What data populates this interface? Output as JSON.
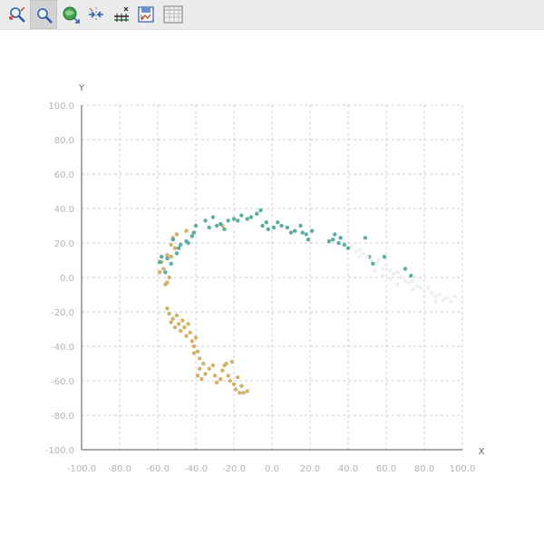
{
  "toolbar": {
    "tools": [
      {
        "icon": "zoom-out-icon",
        "selected": false
      },
      {
        "icon": "zoom-in-icon",
        "selected": true
      },
      {
        "icon": "pan-globe-icon",
        "selected": false
      },
      {
        "icon": "fit-to-data-icon",
        "selected": false
      },
      {
        "icon": "axis-scale-icon",
        "selected": false
      },
      {
        "icon": "save-image-icon",
        "selected": false
      },
      {
        "icon": "data-table-icon",
        "selected": false
      }
    ]
  },
  "chart_data": {
    "type": "scatter",
    "xlabel": "X",
    "ylabel": "Y",
    "xlim": [
      -100,
      100
    ],
    "ylim": [
      -100,
      100
    ],
    "grid": true,
    "x_ticks": [
      "-100.0",
      "-80.0",
      "-60.0",
      "-40.0",
      "-20.0",
      "0.0",
      "20.0",
      "40.0",
      "60.0",
      "80.0",
      "100.0"
    ],
    "y_ticks": [
      "100.0",
      "80.0",
      "60.0",
      "40.0",
      "20.0",
      "0.0",
      "-20.0",
      "-40.0",
      "-60.0",
      "-80.0",
      "-100.0"
    ],
    "series": [
      {
        "color": "#d4b16a",
        "points": [
          [
            -59,
            3
          ],
          [
            -58,
            9
          ],
          [
            -56,
            -4
          ],
          [
            -55,
            13
          ],
          [
            -53,
            19
          ],
          [
            -52,
            23
          ],
          [
            -50,
            25
          ],
          [
            -45,
            27
          ],
          [
            -42,
            24
          ],
          [
            -26,
            30
          ],
          [
            -54,
            0
          ],
          [
            -55,
            -3
          ],
          [
            -57,
            5
          ],
          [
            -53,
            12
          ],
          [
            -51,
            17
          ],
          [
            -55,
            -18
          ],
          [
            -54,
            -21
          ],
          [
            -52,
            -24
          ],
          [
            -53,
            -26
          ],
          [
            -50,
            -22
          ],
          [
            -51,
            -29
          ],
          [
            -49,
            -27
          ],
          [
            -48,
            -31
          ],
          [
            -47,
            -25
          ],
          [
            -46,
            -29
          ],
          [
            -45,
            -34
          ],
          [
            -44,
            -27
          ],
          [
            -43,
            -32
          ],
          [
            -42,
            -37
          ],
          [
            -41,
            -40
          ],
          [
            -40,
            -35
          ],
          [
            -41,
            -44
          ],
          [
            -39,
            -43
          ],
          [
            -38,
            -47
          ],
          [
            -36,
            -50
          ],
          [
            -38,
            -53
          ],
          [
            -35,
            -56
          ],
          [
            -33,
            -53
          ],
          [
            -31,
            -51
          ],
          [
            -30,
            -57
          ],
          [
            -29,
            -61
          ],
          [
            -27,
            -59
          ],
          [
            -26,
            -54
          ],
          [
            -25,
            -51
          ],
          [
            -23,
            -57
          ],
          [
            -22,
            -60
          ],
          [
            -21,
            -49
          ],
          [
            -20,
            -62
          ],
          [
            -19,
            -65
          ],
          [
            -18,
            -58
          ],
          [
            -17,
            -67
          ],
          [
            -16,
            -63
          ],
          [
            -15,
            -67
          ],
          [
            -13,
            -66
          ],
          [
            -39,
            -57
          ],
          [
            -37,
            -59
          ],
          [
            -24,
            -50
          ]
        ]
      },
      {
        "color": "#5aada0",
        "points": [
          [
            -59,
            9
          ],
          [
            -58,
            12
          ],
          [
            -56,
            3
          ],
          [
            -53,
            8
          ],
          [
            -49,
            17
          ],
          [
            -48,
            19
          ],
          [
            -45,
            21
          ],
          [
            -42,
            24
          ],
          [
            -41,
            26
          ],
          [
            -40,
            30
          ],
          [
            -35,
            33
          ],
          [
            -33,
            29
          ],
          [
            -31,
            35
          ],
          [
            -29,
            30
          ],
          [
            -27,
            31
          ],
          [
            -25,
            28
          ],
          [
            -23,
            33
          ],
          [
            -20,
            34
          ],
          [
            -18,
            33
          ],
          [
            -16,
            36
          ],
          [
            -13,
            34
          ],
          [
            -11,
            35
          ],
          [
            -8,
            37
          ],
          [
            -6,
            39
          ],
          [
            -5,
            30
          ],
          [
            -3,
            32
          ],
          [
            -2,
            28
          ],
          [
            1,
            29
          ],
          [
            3,
            32
          ],
          [
            5,
            30
          ],
          [
            8,
            29
          ],
          [
            10,
            26
          ],
          [
            12,
            27
          ],
          [
            15,
            30
          ],
          [
            16,
            26
          ],
          [
            18,
            25
          ],
          [
            19,
            22
          ],
          [
            21,
            27
          ],
          [
            30,
            21
          ],
          [
            32,
            22
          ],
          [
            33,
            25
          ],
          [
            35,
            20
          ],
          [
            36,
            23
          ],
          [
            38,
            19
          ],
          [
            40,
            17
          ],
          [
            49,
            23
          ],
          [
            51,
            12
          ],
          [
            53,
            8
          ],
          [
            59,
            12
          ],
          [
            70,
            5
          ],
          [
            73,
            1
          ],
          [
            -52,
            22
          ],
          [
            -55,
            11
          ],
          [
            -50,
            14
          ],
          [
            -44,
            20
          ]
        ]
      },
      {
        "color": "#eeeeee",
        "points": [
          [
            42,
            18
          ],
          [
            44,
            15
          ],
          [
            46,
            16
          ],
          [
            48,
            14
          ],
          [
            50,
            12
          ],
          [
            52,
            10
          ],
          [
            55,
            8
          ],
          [
            56,
            10
          ],
          [
            58,
            5
          ],
          [
            60,
            7
          ],
          [
            62,
            4
          ],
          [
            64,
            2
          ],
          [
            66,
            3
          ],
          [
            68,
            0
          ],
          [
            70,
            -2
          ],
          [
            72,
            -3
          ],
          [
            74,
            -2
          ],
          [
            76,
            -5
          ],
          [
            78,
            -6
          ],
          [
            80,
            -8
          ],
          [
            82,
            -6
          ],
          [
            84,
            -9
          ],
          [
            86,
            -11
          ],
          [
            88,
            -10
          ],
          [
            90,
            -13
          ],
          [
            92,
            -12
          ],
          [
            94,
            -14
          ],
          [
            96,
            -11
          ],
          [
            66,
            -4
          ],
          [
            62,
            -1
          ],
          [
            58,
            1
          ],
          [
            54,
            4
          ],
          [
            86,
            -14
          ],
          [
            80,
            -11
          ],
          [
            74,
            -7
          ],
          [
            46,
            12
          ]
        ]
      }
    ]
  }
}
